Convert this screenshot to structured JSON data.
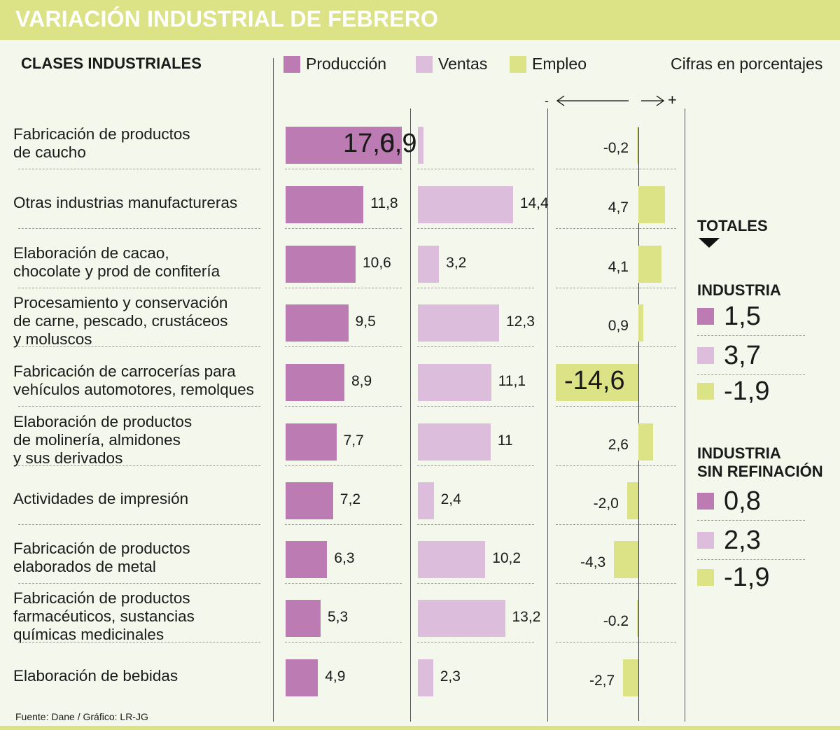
{
  "header": {
    "title": "VARIACIÓN INDUSTRIAL DE FEBRERO"
  },
  "colors": {
    "produccion": "#bc7bb3",
    "ventas": "#dcbddc",
    "empleo": "#dce286",
    "header": "#dce286",
    "background": "#f3f7ec"
  },
  "column_title": "CLASES INDUSTRIALES",
  "legend": [
    {
      "label": "Producción",
      "color": "#bc7bb3"
    },
    {
      "label": "Ventas",
      "color": "#dcbddc"
    },
    {
      "label": "Empleo",
      "color": "#dce286"
    }
  ],
  "units_note": "Cifras en porcentajes",
  "axis_hint": {
    "minus": "-",
    "plus": "+",
    "left_arrow": "⟵",
    "right_arrow": "⟶"
  },
  "chart_data": {
    "type": "bar",
    "title": "VARIACIÓN INDUSTRIAL DE FEBRERO",
    "xlabel": "",
    "ylabel": "Cifras en porcentajes",
    "categories": [
      "Fabricación de productos de caucho",
      "Otras industrias manufactureras",
      "Elaboración de cacao, chocolate y prod de confitería",
      "Procesamiento y conservación de carne, pescado, crustáceos y moluscos",
      "Fabricación de carrocerías para vehículos automotores, remolques",
      "Elaboración de productos de molinería, almidones y sus derivados",
      "Actividades de impresión",
      "Fabricación de productos elaborados de metal",
      "Fabricación de productos farmacéuticos, sustancias químicas medicinales",
      "Elaboración de bebidas"
    ],
    "category_lines": [
      [
        "Fabricación de productos",
        "de caucho"
      ],
      [
        "Otras industrias manufactureras"
      ],
      [
        "Elaboración de cacao,",
        "chocolate y prod de confitería"
      ],
      [
        "Procesamiento y conservación",
        "de carne, pescado, crustáceos",
        "y moluscos"
      ],
      [
        "Fabricación de carrocerías para",
        "vehículos automotores, remolques"
      ],
      [
        "Elaboración de productos",
        "de molinería, almidones",
        "y sus derivados"
      ],
      [
        "Actividades de impresión"
      ],
      [
        "Fabricación de productos",
        "elaborados de metal"
      ],
      [
        "Fabricación de productos",
        "farmacéuticos, sustancias",
        "químicas medicinales"
      ],
      [
        "Elaboración de bebidas"
      ]
    ],
    "series": [
      {
        "name": "Producción",
        "values": [
          17.6,
          11.8,
          10.6,
          9.5,
          8.9,
          7.7,
          7.2,
          6.3,
          5.3,
          4.9
        ],
        "labels": [
          "17,6",
          "11,8",
          "10,6",
          "9,5",
          "8,9",
          "7,7",
          "7,2",
          "6,3",
          "5,3",
          "4,9"
        ]
      },
      {
        "name": "Ventas",
        "values": [
          0.9,
          14.4,
          3.2,
          12.3,
          11.1,
          11,
          2.4,
          10.2,
          13.2,
          2.3
        ],
        "labels": [
          "0,9",
          "14,4",
          "3,2",
          "12,3",
          "11,1",
          "11",
          "2,4",
          "10,2",
          "13,2",
          "2,3"
        ]
      },
      {
        "name": "Empleo",
        "values": [
          -0.2,
          4.7,
          4.1,
          0.9,
          -14.6,
          2.6,
          -2.0,
          -4.3,
          -0.2,
          -2.7
        ],
        "labels": [
          "-0,2",
          "4,7",
          "4,1",
          "0,9",
          "-14,6",
          "2,6",
          "-2,0",
          "-4,3",
          "-0.2",
          "-2,7"
        ]
      }
    ],
    "highlighted": {
      "Producción": 0,
      "Ventas": 0,
      "Empleo": 4
    },
    "totals": {
      "heading": "TOTALES",
      "groups": [
        {
          "name": "INDUSTRIA",
          "lines": [
            "INDUSTRIA"
          ],
          "values": [
            1.5,
            3.7,
            -1.9
          ],
          "labels": [
            "1,5",
            "3,7",
            "-1,9"
          ]
        },
        {
          "name": "INDUSTRIA SIN REFINACIÓN",
          "lines": [
            "INDUSTRIA",
            "SIN REFINACIÓN"
          ],
          "values": [
            0.8,
            2.3,
            -1.9
          ],
          "labels": [
            "0,8",
            "2,3",
            "-1,9"
          ]
        }
      ]
    },
    "grid": false,
    "legend_position": "top"
  },
  "source": "Fuente: Dane / Gráfico: LR-JG"
}
